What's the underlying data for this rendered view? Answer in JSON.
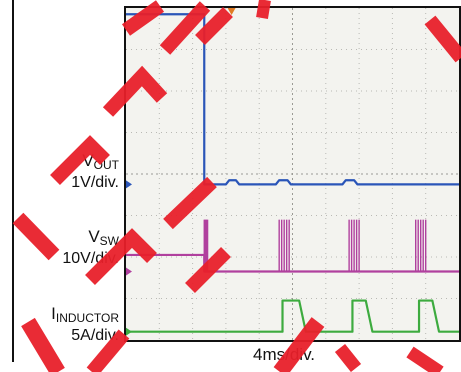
{
  "labels": {
    "vout": {
      "name": "V",
      "sub": "OUT",
      "scale": "1V/div."
    },
    "vsw": {
      "name": "V",
      "sub": "SW",
      "scale": "10V/div."
    },
    "inductor": {
      "name": "I",
      "sub": "INDUCTOR",
      "scale": "5A/div."
    },
    "timebase": "4ms/div."
  },
  "colors": {
    "vout": "#2a55b8",
    "vsw": "#b0409e",
    "inductor": "#3dab3f",
    "trigger": "#e07b22",
    "watermark": "#e8202a"
  },
  "chart_data": {
    "type": "line",
    "title": "",
    "xlabel": "4ms/div.",
    "x_divisions": 10,
    "y_divisions": 8,
    "grid": true,
    "series": [
      {
        "name": "VOUT",
        "scale": "1V/div.",
        "x": [
          0,
          2.35,
          2.35,
          3.0,
          3.1,
          3.3,
          3.4,
          4.5,
          4.6,
          4.85,
          4.95,
          6.5,
          6.6,
          6.85,
          6.95,
          10
        ],
        "y": [
          7.85,
          7.85,
          3.75,
          3.75,
          3.85,
          3.85,
          3.75,
          3.75,
          3.85,
          3.85,
          3.75,
          3.75,
          3.85,
          3.85,
          3.75,
          3.75
        ]
      },
      {
        "name": "VSW",
        "scale": "10V/div.",
        "x": [
          0,
          2.35,
          2.35,
          4.7,
          4.7,
          10
        ],
        "y": [
          2.05,
          2.05,
          1.65,
          1.65,
          1.65,
          1.65
        ],
        "bursts": [
          [
            2.35,
            2.45
          ],
          [
            4.6,
            4.9
          ],
          [
            6.7,
            7.0
          ],
          [
            8.7,
            9.0
          ]
        ],
        "burst_high": 2.9
      },
      {
        "name": "INDUCTOR",
        "scale": "5A/div.",
        "x": [
          0,
          3.45,
          3.45,
          3.5,
          3.5,
          4.7,
          4.7,
          5.2,
          5.4,
          5.4,
          6.8,
          6.8,
          7.2,
          7.4,
          7.4,
          8.8,
          8.8,
          9.2,
          9.4,
          9.4,
          10
        ],
        "y": [
          0.2,
          0.2,
          0.2,
          0.2,
          0.2,
          0.2,
          0.95,
          0.95,
          0.2,
          0.2,
          0.2,
          0.95,
          0.95,
          0.2,
          0.2,
          0.2,
          0.95,
          0.95,
          0.2,
          0.2,
          0.2
        ],
        "pulse_high": 0.95
      }
    ]
  }
}
